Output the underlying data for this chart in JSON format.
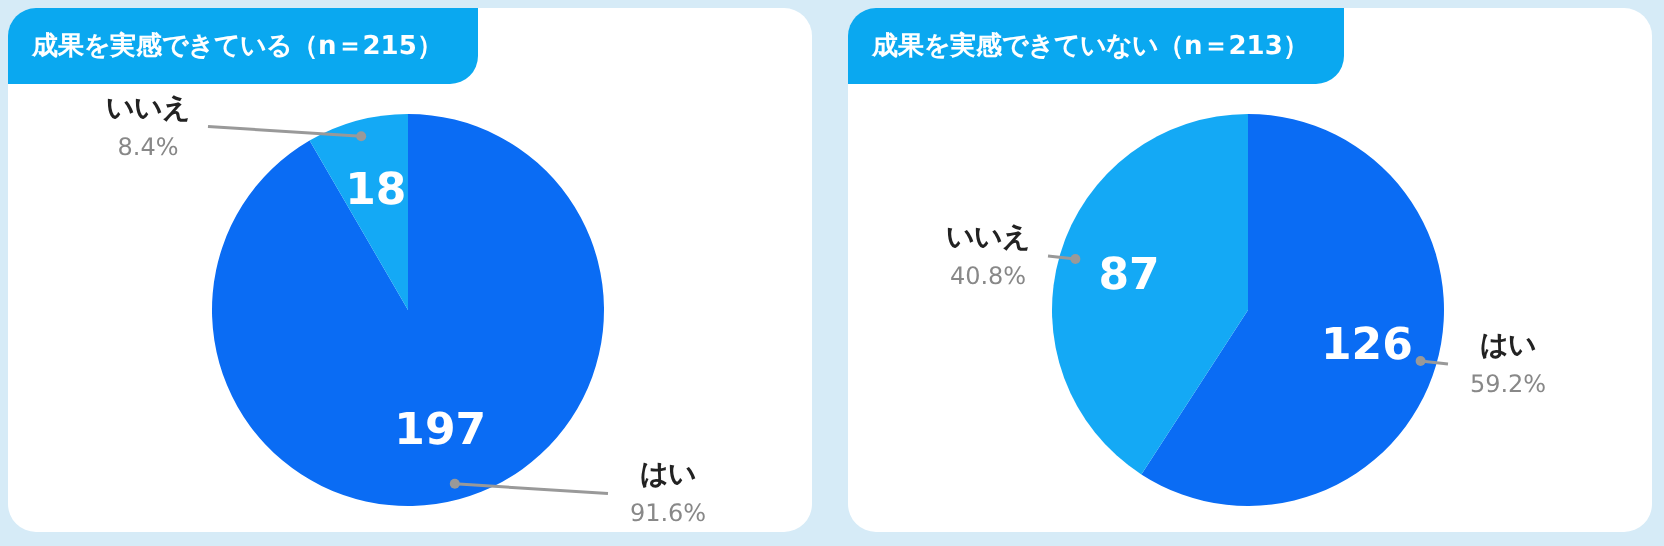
{
  "chart_data": [
    {
      "type": "pie",
      "title": "成果を実感できている（n＝215）",
      "categories": [
        "はい",
        "いいえ"
      ],
      "values": [
        197,
        18
      ],
      "colors": [
        "#0a6cf4",
        "#14a9f5"
      ],
      "data_labels": true,
      "annotations": [
        "91.6%",
        "8.4%"
      ]
    },
    {
      "type": "pie",
      "title": "成果を実感できていない（n＝213）",
      "categories": [
        "はい",
        "いいえ"
      ],
      "values": [
        126,
        87
      ],
      "colors": [
        "#0a6cf4",
        "#14a9f5"
      ],
      "data_labels": true,
      "annotations": [
        "59.2%",
        "40.8%"
      ]
    }
  ]
}
